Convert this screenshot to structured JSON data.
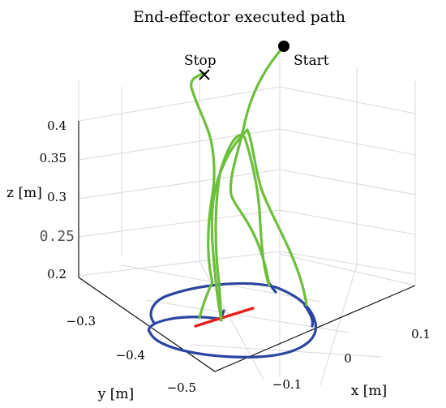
{
  "chart_data": {
    "type": "line",
    "title": "End-effector executed path",
    "xlabel": "x [m]",
    "ylabel": "y [m]",
    "zlabel": "z [m]",
    "x_ticks": [
      "−0.1",
      "0",
      "0.1"
    ],
    "y_ticks": [
      "−0.3",
      "−0.4",
      "−0.5"
    ],
    "z_ticks": [
      "0.4",
      "0.35",
      "0.3",
      "0.25",
      "0.2"
    ],
    "zlim": [
      0.18,
      0.43
    ],
    "grid": true,
    "annotations": {
      "start": "Start",
      "stop": "Stop"
    },
    "series": [
      {
        "role": "executed-path",
        "color": "#6cbf3a"
      },
      {
        "role": "base-circle",
        "color": "#2b45a0"
      },
      {
        "role": "tool-segment",
        "color": "#e62020"
      }
    ]
  }
}
